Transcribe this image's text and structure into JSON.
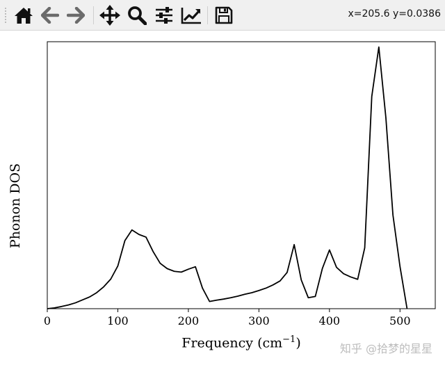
{
  "toolbar": {
    "buttons": [
      {
        "name": "home-button",
        "icon": "home-icon"
      },
      {
        "name": "back-button",
        "icon": "arrow-left-icon"
      },
      {
        "name": "forward-button",
        "icon": "arrow-right-icon"
      },
      {
        "name": "pan-button",
        "icon": "move-icon"
      },
      {
        "name": "zoom-button",
        "icon": "magnifier-icon"
      },
      {
        "name": "configure-subplots-button",
        "icon": "sliders-icon"
      },
      {
        "name": "edit-axis-button",
        "icon": "line-chart-icon"
      },
      {
        "name": "save-button",
        "icon": "floppy-disk-icon"
      }
    ],
    "coords": "x=205.6 y=0.0386"
  },
  "chart_data": {
    "type": "line",
    "xlabel": "Frequency (cm",
    "xlabel_exponent": "−1",
    "xlabel_suffix": ")",
    "ylabel": "Phonon DOS",
    "xlim": [
      0,
      550
    ],
    "ylim": [
      0,
      1.0
    ],
    "x_ticks": [
      0,
      100,
      200,
      300,
      400,
      500
    ],
    "y_ticks_shown": false,
    "grid": false,
    "series": [
      {
        "color": "#000000",
        "x": [
          0,
          10,
          20,
          30,
          40,
          50,
          60,
          70,
          80,
          90,
          100,
          110,
          120,
          130,
          140,
          150,
          160,
          170,
          180,
          190,
          200,
          210,
          220,
          230,
          240,
          250,
          260,
          270,
          280,
          290,
          300,
          310,
          320,
          330,
          340,
          350,
          360,
          370,
          380,
          390,
          400,
          410,
          420,
          430,
          440,
          450,
          460,
          470,
          480,
          490,
          500,
          510
        ],
        "y": [
          0.0,
          0.003,
          0.008,
          0.014,
          0.022,
          0.033,
          0.044,
          0.06,
          0.082,
          0.111,
          0.16,
          0.255,
          0.295,
          0.278,
          0.268,
          0.214,
          0.17,
          0.15,
          0.14,
          0.137,
          0.148,
          0.157,
          0.077,
          0.027,
          0.032,
          0.036,
          0.041,
          0.047,
          0.054,
          0.06,
          0.068,
          0.077,
          0.089,
          0.104,
          0.136,
          0.24,
          0.108,
          0.041,
          0.046,
          0.151,
          0.22,
          0.155,
          0.131,
          0.119,
          0.11,
          0.228,
          0.795,
          0.98,
          0.715,
          0.351,
          0.158,
          0.0
        ]
      }
    ]
  },
  "watermark": "知乎 @拾梦的星星"
}
